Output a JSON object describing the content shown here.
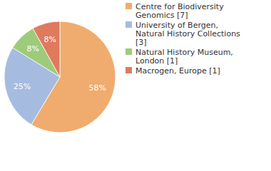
{
  "chart_data": {
    "type": "pie",
    "categories": [
      "Centre for Biodiversity Genomics [7]",
      "University of Bergen, Natural History Collections [3]",
      "Natural History Museum, London [1]",
      "Macrogen, Europe [1]"
    ],
    "values": [
      58,
      25,
      8,
      8
    ],
    "value_labels": [
      "58%",
      "25%",
      "8%",
      "8%"
    ],
    "colors": [
      "#f0ac6e",
      "#a5bce0",
      "#9ecb7b",
      "#df7a5d"
    ],
    "data_labels": true,
    "legend": "upper right"
  }
}
